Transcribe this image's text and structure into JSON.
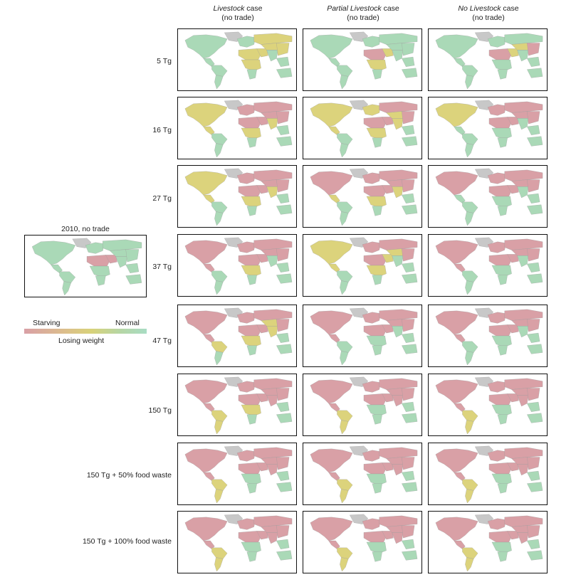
{
  "columns": [
    {
      "em": "Livestock",
      "rest": " case",
      "sub": "(no trade)"
    },
    {
      "em": "Partial Livestock",
      "rest": " case",
      "sub": "(no trade)"
    },
    {
      "em": "No Livestock",
      "rest": " case",
      "sub": "(no trade)"
    }
  ],
  "rows": [
    "5 Tg",
    "16 Tg",
    "27 Tg",
    "37 Tg",
    "47 Tg",
    "150 Tg",
    "150 Tg + 50% food waste",
    "150 Tg + 100% food waste"
  ],
  "baseline": {
    "title": "2010, no trade"
  },
  "legend": {
    "left": "Starving",
    "right": "Normal",
    "middle": "Losing weight"
  },
  "colors": {
    "starving": "#d9a0a6",
    "losing_weight": "#dcd37c",
    "normal": "#aad9b7",
    "no_data": "#c8c8c8"
  },
  "status_grid": {
    "legend_codes": {
      "S": "starving",
      "L": "losing_weight",
      "N": "normal",
      "G": "no_data"
    },
    "region_order": [
      "north_america",
      "greenland",
      "central_america",
      "south_america_north",
      "south_america_south",
      "europe",
      "north_africa",
      "sub_saharan_africa",
      "southern_africa",
      "middle_east",
      "russia",
      "central_asia",
      "south_asia",
      "east_asia",
      "southeast_asia",
      "australia"
    ],
    "baseline": "NGNNNNSNNSNNNNNN",
    "panels": [
      [
        "NGNNNNLLNLLLNLNN",
        "NGNNNNSLNLNNNNNN",
        "NGNNNNSNNLNLNSNN"
      ],
      [
        "LGLNNSSLNSSSLSNN",
        "LGLNNLSLNSSLLSNN",
        "LGNNNSSNNSSSNSNN"
      ],
      [
        "LGLNNSSLNSSSLSNN",
        "SGLNNSSLNSSSLSNN",
        "SGNNNSSNNSSSNSNN"
      ],
      [
        "SGSNNSSLNSSSNSNN",
        "LGLNNSSLNLSLNSNN",
        "SGSNNSSNNSSSNSNN"
      ],
      [
        "SGSLNSSLNSSLLSNN",
        "SGSNNSSNNSSSNSNN",
        "SGSNNSSNNSSSNSNN"
      ],
      [
        "SGSLLSSLNSSSSSNN",
        "SGSLLSSNNSSSSSNN",
        "SGSLLSSNNSSSSSNN"
      ],
      [
        "SGSLLSSNNSSSSSNN",
        "SGSLLSSNNSSSSSNN",
        "SGSLLSSNNSSSSSNN"
      ],
      [
        "SGSLLSSNNSSSSSNN",
        "SGSLLSSNNSSSSSNN",
        "SGSLLSSNNSSSSSNN"
      ]
    ]
  }
}
